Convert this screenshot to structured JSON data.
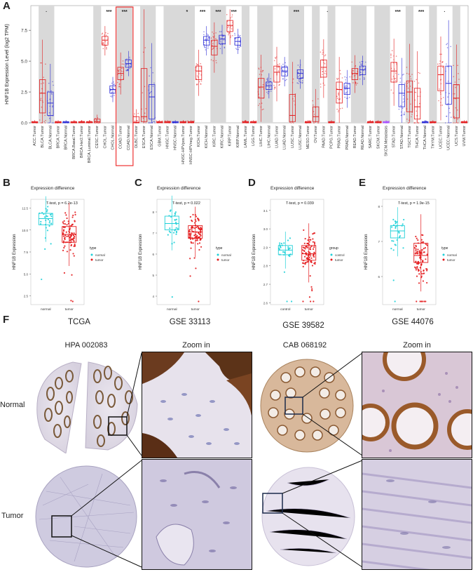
{
  "figure": {
    "panel_labels": [
      "A",
      "B",
      "C",
      "D",
      "E",
      "F"
    ]
  },
  "chart_data": [
    {
      "type": "box",
      "panel": "A",
      "ylabel": "HNF1B Expression Level (log2 TPM)",
      "ytick_labels": [
        "0.0",
        "2.5",
        "5.0",
        "7.5"
      ],
      "ylim": [
        0,
        9.5
      ],
      "highlighted_categories": [
        "COAD.Tumor",
        "COAD.Normal"
      ],
      "categories": [
        "ACC.Tumor",
        "BLCA.Tumor",
        "BLCA.Normal",
        "BRCA.Tumor",
        "BRCA.Normal",
        "BRCA.Basal.Tumor",
        "BRCA.Her2.Tumor",
        "BRCA.Luminal.Tumor",
        "CESC.Tumor",
        "CHOL.Tumor",
        "CHOL.Normal",
        "COAD.Tumor",
        "COAD.Normal",
        "DLBC.Tumor",
        "ESCA.Tumor",
        "ESCA.Normal",
        "GBM.Tumor",
        "HNSC.Tumor",
        "HNSC.Normal",
        "HNSC-HPVpos.Tumor",
        "HNSC-HPVneg.Tumor",
        "KICH.Tumor",
        "KICH.Normal",
        "KIRC.Tumor",
        "KIRC.Normal",
        "KIRP.Tumor",
        "KIRP.Normal",
        "LAML.Tumor",
        "LGG.Tumor",
        "LIHC.Tumor",
        "LIHC.Normal",
        "LUAD.Tumor",
        "LUAD.Normal",
        "LUSC.Tumor",
        "LUSC.Normal",
        "MESO.Tumor",
        "OV.Tumor",
        "PAAD.Tumor",
        "PCPG.Tumor",
        "PRAD.Tumor",
        "PRAD.Normal",
        "READ.Tumor",
        "READ.Normal",
        "SARC.Tumor",
        "SKCM.Tumor",
        "SKCM.Metastasis",
        "STAD.Tumor",
        "STAD.Normal",
        "TGCT.Tumor",
        "THCA.Tumor",
        "THCA.Normal",
        "THYM.Tumor",
        "UCEC.Tumor",
        "UCEC.Normal",
        "UCS.Tumor",
        "UVM.Tumor"
      ],
      "medians": [
        0.05,
        2.4,
        1.6,
        0.05,
        0.05,
        0.05,
        0.05,
        0.05,
        0.1,
        6.7,
        2.7,
        4.0,
        4.8,
        0.05,
        0.5,
        2.1,
        0.05,
        0.05,
        0.05,
        0.05,
        0.05,
        4.2,
        6.7,
        6.2,
        6.8,
        7.9,
        6.6,
        0.05,
        0.05,
        2.9,
        3.0,
        4.1,
        4.2,
        0.6,
        4.0,
        0.05,
        0.5,
        4.5,
        0.05,
        2.7,
        2.8,
        4.0,
        4.3,
        0.05,
        0.05,
        0.05,
        4.2,
        2.4,
        2.5,
        1.3,
        0.05,
        0.05,
        3.9,
        3.2,
        2.0,
        0.05
      ],
      "q1": [
        0,
        0.8,
        0.6,
        0,
        0,
        0,
        0,
        0,
        0,
        6.3,
        2.4,
        3.5,
        4.5,
        0,
        0.1,
        0.3,
        0,
        0,
        0,
        0,
        0,
        3.5,
        6.3,
        5.5,
        6.4,
        7.4,
        6.3,
        0,
        0,
        2.0,
        2.7,
        3.3,
        3.8,
        0.1,
        3.6,
        0,
        0.1,
        3.7,
        0,
        1.6,
        2.3,
        3.5,
        3.9,
        0,
        0,
        0,
        3.3,
        1.3,
        0.9,
        0.3,
        0,
        0,
        2.6,
        1.5,
        0.4,
        0
      ],
      "q3": [
        0.1,
        3.5,
        2.5,
        0.1,
        0.1,
        0.1,
        0.1,
        0.1,
        0.3,
        7.0,
        3.0,
        4.5,
        5.1,
        0.5,
        4.4,
        3.1,
        0.1,
        0.1,
        0.1,
        0.1,
        0.1,
        4.6,
        7.0,
        6.7,
        7.1,
        8.3,
        6.9,
        0.1,
        0.1,
        3.6,
        3.3,
        4.6,
        4.5,
        2.3,
        4.3,
        0.1,
        1.3,
        5.1,
        0.1,
        3.3,
        3.2,
        4.4,
        4.6,
        0.1,
        0.1,
        0.1,
        4.9,
        3.1,
        3.4,
        2.8,
        0.1,
        0.1,
        4.6,
        4.6,
        3.1,
        0.1
      ],
      "colors": [
        "tumor",
        "tumor",
        "normal",
        "tumor",
        "normal",
        "tumor",
        "tumor",
        "tumor",
        "tumor",
        "tumor",
        "normal",
        "tumor",
        "normal",
        "tumor",
        "tumor",
        "normal",
        "tumor",
        "tumor",
        "normal",
        "tumor",
        "tumor",
        "tumor",
        "normal",
        "tumor",
        "normal",
        "tumor",
        "normal",
        "tumor",
        "tumor",
        "tumor",
        "normal",
        "tumor",
        "normal",
        "tumor",
        "normal",
        "tumor",
        "tumor",
        "tumor",
        "tumor",
        "tumor",
        "normal",
        "tumor",
        "normal",
        "tumor",
        "tumor",
        "meta",
        "tumor",
        "normal",
        "tumor",
        "tumor",
        "normal",
        "tumor",
        "tumor",
        "normal",
        "tumor",
        "tumor"
      ],
      "significance": [
        "",
        "·",
        "",
        "",
        "",
        "",
        "",
        "",
        "",
        "***",
        "",
        "***",
        "",
        "",
        "",
        "",
        "",
        "",
        "",
        "*",
        "",
        "***",
        "",
        "***",
        "",
        "***",
        "",
        "",
        "",
        "",
        "",
        "",
        "",
        "***",
        "",
        "",
        "",
        "·",
        "",
        "",
        "",
        "",
        "",
        "",
        "",
        "",
        "***",
        "",
        "",
        "***",
        "",
        "",
        "·",
        "",
        "",
        ""
      ]
    },
    {
      "type": "box",
      "panel": "B",
      "dataset": "TCGA",
      "title": "Expression difference",
      "test": "T-test, p = 6.2e-13",
      "ylabel": "HNF1B Expression",
      "xlabel": "",
      "categories": [
        "normal",
        "tumor"
      ],
      "yticks": [
        "2.5",
        "5.0",
        "7.5",
        "10.0",
        "12.5"
      ],
      "ylim": [
        1.5,
        13.5
      ],
      "medians": [
        11.3,
        9.5
      ],
      "q1": [
        10.6,
        8.6
      ],
      "q3": [
        11.9,
        10.4
      ],
      "legend": {
        "title": "type",
        "entries": [
          "normal",
          "tumor"
        ]
      }
    },
    {
      "type": "box",
      "panel": "C",
      "dataset": "GSE 33113",
      "title": "Expression difference",
      "test": "T-test, p = 0.022",
      "ylabel": "HNF1B Expression",
      "xlabel": "",
      "categories": [
        "normal",
        "tumor"
      ],
      "yticks": [
        "4",
        "5",
        "6",
        "7",
        "8"
      ],
      "ylim": [
        3.6,
        8.6
      ],
      "medians": [
        7.45,
        7.05
      ],
      "q1": [
        7.15,
        6.75
      ],
      "q3": [
        7.8,
        7.35
      ],
      "legend": {
        "title": "type",
        "entries": [
          "normal",
          "tumor"
        ]
      }
    },
    {
      "type": "box",
      "panel": "D",
      "dataset": "GSE 39582",
      "title": "Expression difference",
      "test": "T-test, p = 0.039",
      "ylabel": "HNF1B Expression",
      "xlabel": "",
      "categories": [
        "control",
        "tumor"
      ],
      "yticks": [
        "2.6",
        "2.7",
        "2.8",
        "2.9",
        "3.0",
        "3.1"
      ],
      "ylim": [
        2.59,
        3.16
      ],
      "medians": [
        2.885,
        2.865
      ],
      "q1": [
        2.86,
        2.83
      ],
      "q3": [
        2.91,
        2.91
      ],
      "legend": {
        "title": "group",
        "entries": [
          "control",
          "tumor"
        ]
      }
    },
    {
      "type": "box",
      "panel": "E",
      "dataset": "GSE 44076",
      "title": "Expression difference",
      "test": "T-test, p = 1.9e-15",
      "ylabel": "HNF1B Expression",
      "xlabel": "",
      "categories": [
        "normal",
        "tumor"
      ],
      "yticks": [
        "6",
        "7",
        "8"
      ],
      "ylim": [
        5.2,
        8.2
      ],
      "medians": [
        7.3,
        6.6
      ],
      "q1": [
        7.1,
        6.4
      ],
      "q3": [
        7.45,
        6.95
      ],
      "legend": {
        "title": "type",
        "entries": [
          "normal",
          "tumor"
        ]
      }
    }
  ],
  "colors": {
    "tumor": "#e31a1c",
    "normal": "#2b2bd6",
    "meta": "#a64dff",
    "cyan": "#1fd0d8",
    "highlight": "#e33"
  },
  "ihc": {
    "columns": [
      "HPA 002083",
      "Zoom in",
      "CAB 068192",
      "Zoom in"
    ],
    "rows": [
      "Normal",
      "Tumor"
    ]
  }
}
